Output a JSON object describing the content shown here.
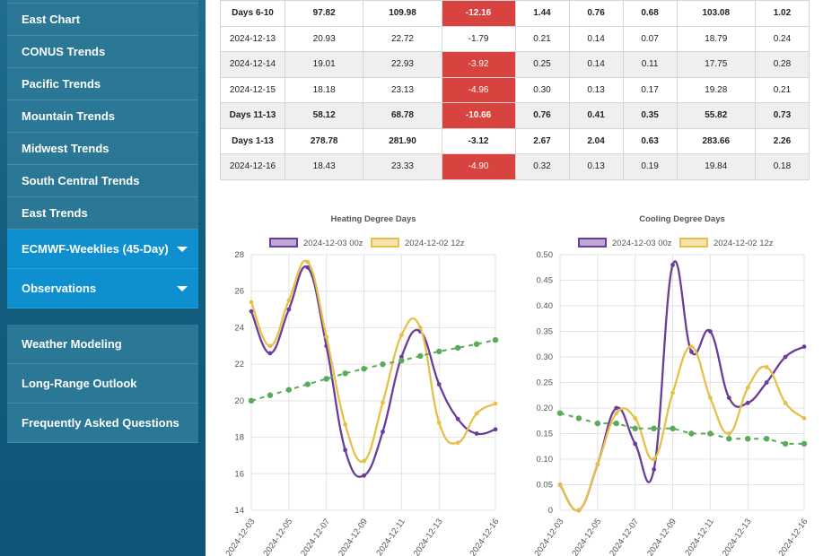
{
  "sidebar": {
    "group1": [
      {
        "label": "East Chart"
      },
      {
        "label": "CONUS Trends"
      },
      {
        "label": "Pacific Trends"
      },
      {
        "label": "Mountain Trends"
      },
      {
        "label": "Midwest Trends"
      },
      {
        "label": "South Central Trends"
      },
      {
        "label": "East Trends"
      }
    ],
    "active1": "ECMWF-Weeklies (45-Day)",
    "active2": "Observations",
    "group2": [
      {
        "label": "Weather Modeling"
      },
      {
        "label": "Long-Range Outlook"
      },
      {
        "label": "Frequently Asked Questions"
      }
    ]
  },
  "table": {
    "rows": [
      {
        "cells": [
          "Days 6-10",
          "97.82",
          "109.98",
          "-12.16",
          "1.44",
          "0.76",
          "0.68",
          "103.08",
          "1.02"
        ],
        "bold": true,
        "shade": false,
        "neg": true
      },
      {
        "cells": [
          "2024-12-13",
          "20.93",
          "22.72",
          "-1.79",
          "0.21",
          "0.14",
          "0.07",
          "18.79",
          "0.24"
        ],
        "bold": false,
        "shade": false,
        "neg": false
      },
      {
        "cells": [
          "2024-12-14",
          "19.01",
          "22.93",
          "-3.92",
          "0.25",
          "0.14",
          "0.11",
          "17.75",
          "0.28"
        ],
        "bold": false,
        "shade": true,
        "neg": true
      },
      {
        "cells": [
          "2024-12-15",
          "18.18",
          "23.13",
          "-4.96",
          "0.30",
          "0.13",
          "0.17",
          "19.28",
          "0.21"
        ],
        "bold": false,
        "shade": false,
        "neg": true
      },
      {
        "cells": [
          "Days 11-13",
          "58.12",
          "68.78",
          "-10.66",
          "0.76",
          "0.41",
          "0.35",
          "55.82",
          "0.73"
        ],
        "bold": true,
        "shade": true,
        "neg": true
      },
      {
        "cells": [
          "Days 1-13",
          "278.78",
          "281.90",
          "-3.12",
          "2.67",
          "2.04",
          "0.63",
          "283.66",
          "2.26"
        ],
        "bold": true,
        "shade": false,
        "neg": false
      },
      {
        "cells": [
          "2024-12-16",
          "18.43",
          "23.33",
          "-4.90",
          "0.32",
          "0.13",
          "0.19",
          "19.84",
          "0.18"
        ],
        "bold": false,
        "shade": true,
        "neg": true
      }
    ]
  },
  "chart_data": [
    {
      "type": "line",
      "title": "Heating Degree Days",
      "x": [
        "2024-12-03",
        "2024-12-04",
        "2024-12-05",
        "2024-12-06",
        "2024-12-07",
        "2024-12-08",
        "2024-12-09",
        "2024-12-10",
        "2024-12-11",
        "2024-12-12",
        "2024-12-13",
        "2024-12-14",
        "2024-12-15",
        "2024-12-16"
      ],
      "xticks": [
        "2024-12-03",
        "2024-12-05",
        "2024-12-07",
        "2024-12-09",
        "2024-12-11",
        "2024-12-13",
        "2024-12-16"
      ],
      "ylim": [
        14,
        28
      ],
      "yticks": [
        "14",
        "16",
        "18",
        "20",
        "22",
        "24",
        "26",
        "28"
      ],
      "series": [
        {
          "name": "2024-12-03 00z",
          "color": "#6a3d9a",
          "values": [
            24.9,
            22.6,
            25.0,
            27.3,
            23.0,
            17.3,
            15.9,
            18.3,
            22.4,
            23.8,
            20.9,
            19.0,
            18.2,
            18.43
          ]
        },
        {
          "name": "2024-12-02 12z",
          "color": "#e6c04a",
          "values": [
            25.4,
            23.0,
            25.5,
            27.6,
            23.5,
            18.7,
            16.7,
            19.9,
            23.6,
            24.0,
            18.8,
            17.7,
            19.3,
            19.84
          ]
        },
        {
          "name": "",
          "color": "#5aaa5a",
          "dashed": true,
          "values": [
            20.0,
            20.3,
            20.6,
            20.9,
            21.2,
            21.5,
            21.75,
            22.0,
            22.2,
            22.45,
            22.7,
            22.9,
            23.1,
            23.33
          ]
        }
      ]
    },
    {
      "type": "line",
      "title": "Cooling Degree Days",
      "x": [
        "2024-12-03",
        "2024-12-04",
        "2024-12-05",
        "2024-12-06",
        "2024-12-07",
        "2024-12-08",
        "2024-12-09",
        "2024-12-10",
        "2024-12-11",
        "2024-12-12",
        "2024-12-13",
        "2024-12-14",
        "2024-12-15",
        "2024-12-16"
      ],
      "xticks": [
        "2024-12-03",
        "2024-12-05",
        "2024-12-07",
        "2024-12-09",
        "2024-12-11",
        "2024-12-13",
        "2024-12-16"
      ],
      "ylim": [
        0,
        0.5
      ],
      "yticks": [
        "0",
        "0.05",
        "0.10",
        "0.15",
        "0.20",
        "0.25",
        "0.30",
        "0.35",
        "0.40",
        "0.45",
        "0.50"
      ],
      "series": [
        {
          "name": "2024-12-03 00z",
          "color": "#6a3d9a",
          "values": [
            0.05,
            0.0,
            0.09,
            0.2,
            0.13,
            0.08,
            0.48,
            0.31,
            0.35,
            0.22,
            0.21,
            0.25,
            0.3,
            0.32
          ]
        },
        {
          "name": "2024-12-02 12z",
          "color": "#e6c04a",
          "values": [
            0.05,
            0.0,
            0.09,
            0.19,
            0.18,
            0.1,
            0.23,
            0.32,
            0.22,
            0.15,
            0.24,
            0.28,
            0.21,
            0.18
          ]
        },
        {
          "name": "",
          "color": "#5aaa5a",
          "dashed": true,
          "values": [
            0.19,
            0.18,
            0.17,
            0.17,
            0.16,
            0.16,
            0.16,
            0.15,
            0.15,
            0.14,
            0.14,
            0.14,
            0.13,
            0.13
          ]
        }
      ]
    }
  ]
}
